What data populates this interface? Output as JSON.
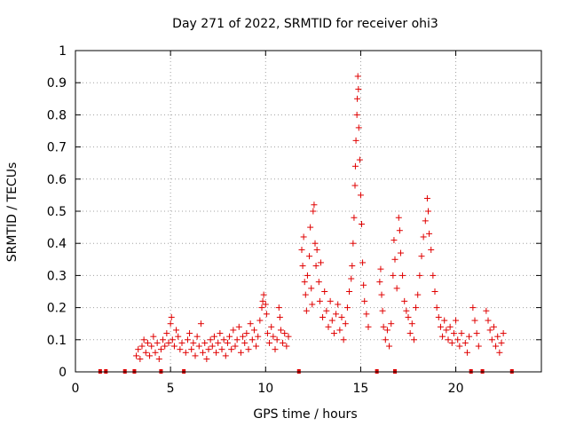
{
  "chart_data": {
    "type": "scatter",
    "title": "Day 271 of 2022, SRMTID for receiver ohi3",
    "xlabel": "GPS time / hours",
    "ylabel": "SRMTID / TECUs",
    "xlim": [
      0,
      24.5
    ],
    "ylim": [
      0,
      1
    ],
    "x_ticks": [
      "0",
      "5",
      "10",
      "15",
      "20"
    ],
    "y_ticks": [
      "0",
      "0.1",
      "0.2",
      "0.3",
      "0.4",
      "0.5",
      "0.6",
      "0.7",
      "0.8",
      "0.9",
      "1"
    ],
    "grid": true,
    "marker": "+",
    "color": "#e00000",
    "markers_at_zero_x": [
      1.3,
      1.6,
      2.6,
      3.1,
      4.5,
      5.7,
      11.75,
      15.85,
      16.8,
      20.8,
      21.4,
      22.95
    ],
    "series": [
      {
        "name": "ohi3",
        "points": [
          [
            3.2,
            0.05
          ],
          [
            3.3,
            0.07
          ],
          [
            3.4,
            0.04
          ],
          [
            3.5,
            0.08
          ],
          [
            3.6,
            0.1
          ],
          [
            3.7,
            0.06
          ],
          [
            3.8,
            0.09
          ],
          [
            3.9,
            0.05
          ],
          [
            4.0,
            0.08
          ],
          [
            4.1,
            0.11
          ],
          [
            4.2,
            0.06
          ],
          [
            4.3,
            0.09
          ],
          [
            4.4,
            0.04
          ],
          [
            4.5,
            0.07
          ],
          [
            4.6,
            0.1
          ],
          [
            4.7,
            0.08
          ],
          [
            4.8,
            0.12
          ],
          [
            4.9,
            0.09
          ],
          [
            5.0,
            0.15
          ],
          [
            5.05,
            0.17
          ],
          [
            5.1,
            0.1
          ],
          [
            5.2,
            0.08
          ],
          [
            5.3,
            0.13
          ],
          [
            5.4,
            0.11
          ],
          [
            5.5,
            0.07
          ],
          [
            5.6,
            0.09
          ],
          [
            5.8,
            0.06
          ],
          [
            5.9,
            0.1
          ],
          [
            6.0,
            0.12
          ],
          [
            6.1,
            0.07
          ],
          [
            6.2,
            0.09
          ],
          [
            6.3,
            0.05
          ],
          [
            6.4,
            0.11
          ],
          [
            6.5,
            0.08
          ],
          [
            6.6,
            0.15
          ],
          [
            6.7,
            0.06
          ],
          [
            6.8,
            0.09
          ],
          [
            6.9,
            0.04
          ],
          [
            7.0,
            0.07
          ],
          [
            7.1,
            0.1
          ],
          [
            7.2,
            0.08
          ],
          [
            7.3,
            0.11
          ],
          [
            7.4,
            0.06
          ],
          [
            7.5,
            0.09
          ],
          [
            7.6,
            0.12
          ],
          [
            7.7,
            0.07
          ],
          [
            7.8,
            0.1
          ],
          [
            7.9,
            0.05
          ],
          [
            8.0,
            0.09
          ],
          [
            8.1,
            0.11
          ],
          [
            8.2,
            0.07
          ],
          [
            8.3,
            0.13
          ],
          [
            8.4,
            0.08
          ],
          [
            8.5,
            0.1
          ],
          [
            8.6,
            0.14
          ],
          [
            8.7,
            0.06
          ],
          [
            8.8,
            0.11
          ],
          [
            8.9,
            0.09
          ],
          [
            9.0,
            0.12
          ],
          [
            9.1,
            0.07
          ],
          [
            9.2,
            0.15
          ],
          [
            9.3,
            0.1
          ],
          [
            9.4,
            0.13
          ],
          [
            9.5,
            0.08
          ],
          [
            9.6,
            0.11
          ],
          [
            9.7,
            0.16
          ],
          [
            9.8,
            0.2
          ],
          [
            9.85,
            0.22
          ],
          [
            9.9,
            0.24
          ],
          [
            10.0,
            0.21
          ],
          [
            10.05,
            0.18
          ],
          [
            10.1,
            0.12
          ],
          [
            10.2,
            0.09
          ],
          [
            10.3,
            0.14
          ],
          [
            10.4,
            0.11
          ],
          [
            10.5,
            0.07
          ],
          [
            10.6,
            0.1
          ],
          [
            10.7,
            0.2
          ],
          [
            10.75,
            0.17
          ],
          [
            10.8,
            0.13
          ],
          [
            10.9,
            0.09
          ],
          [
            11.0,
            0.12
          ],
          [
            11.1,
            0.08
          ],
          [
            11.2,
            0.11
          ],
          [
            11.9,
            0.38
          ],
          [
            11.95,
            0.33
          ],
          [
            12.0,
            0.42
          ],
          [
            12.05,
            0.28
          ],
          [
            12.1,
            0.24
          ],
          [
            12.15,
            0.19
          ],
          [
            12.2,
            0.3
          ],
          [
            12.3,
            0.36
          ],
          [
            12.35,
            0.45
          ],
          [
            12.4,
            0.26
          ],
          [
            12.45,
            0.21
          ],
          [
            12.5,
            0.5
          ],
          [
            12.55,
            0.52
          ],
          [
            12.6,
            0.4
          ],
          [
            12.65,
            0.33
          ],
          [
            12.7,
            0.38
          ],
          [
            12.8,
            0.28
          ],
          [
            12.85,
            0.22
          ],
          [
            12.9,
            0.34
          ],
          [
            13.0,
            0.17
          ],
          [
            13.1,
            0.25
          ],
          [
            13.2,
            0.19
          ],
          [
            13.3,
            0.14
          ],
          [
            13.4,
            0.22
          ],
          [
            13.5,
            0.16
          ],
          [
            13.6,
            0.12
          ],
          [
            13.7,
            0.18
          ],
          [
            13.8,
            0.21
          ],
          [
            13.9,
            0.13
          ],
          [
            14.0,
            0.17
          ],
          [
            14.1,
            0.1
          ],
          [
            14.2,
            0.15
          ],
          [
            14.3,
            0.2
          ],
          [
            14.4,
            0.25
          ],
          [
            14.5,
            0.29
          ],
          [
            14.55,
            0.33
          ],
          [
            14.6,
            0.4
          ],
          [
            14.65,
            0.48
          ],
          [
            14.7,
            0.58
          ],
          [
            14.72,
            0.64
          ],
          [
            14.75,
            0.72
          ],
          [
            14.8,
            0.8
          ],
          [
            14.82,
            0.85
          ],
          [
            14.85,
            0.92
          ],
          [
            14.88,
            0.88
          ],
          [
            14.9,
            0.76
          ],
          [
            14.95,
            0.66
          ],
          [
            15.0,
            0.55
          ],
          [
            15.05,
            0.46
          ],
          [
            15.1,
            0.34
          ],
          [
            15.15,
            0.27
          ],
          [
            15.2,
            0.22
          ],
          [
            15.3,
            0.18
          ],
          [
            15.4,
            0.14
          ],
          [
            16.0,
            0.28
          ],
          [
            16.05,
            0.32
          ],
          [
            16.1,
            0.24
          ],
          [
            16.15,
            0.19
          ],
          [
            16.2,
            0.14
          ],
          [
            16.3,
            0.1
          ],
          [
            16.4,
            0.13
          ],
          [
            16.5,
            0.08
          ],
          [
            16.6,
            0.15
          ],
          [
            16.7,
            0.3
          ],
          [
            16.75,
            0.41
          ],
          [
            16.8,
            0.35
          ],
          [
            16.9,
            0.26
          ],
          [
            17.0,
            0.48
          ],
          [
            17.05,
            0.44
          ],
          [
            17.1,
            0.37
          ],
          [
            17.2,
            0.3
          ],
          [
            17.3,
            0.22
          ],
          [
            17.4,
            0.19
          ],
          [
            17.5,
            0.17
          ],
          [
            17.6,
            0.12
          ],
          [
            17.7,
            0.15
          ],
          [
            17.8,
            0.1
          ],
          [
            17.9,
            0.2
          ],
          [
            18.0,
            0.24
          ],
          [
            18.1,
            0.3
          ],
          [
            18.2,
            0.36
          ],
          [
            18.3,
            0.42
          ],
          [
            18.4,
            0.47
          ],
          [
            18.5,
            0.54
          ],
          [
            18.55,
            0.5
          ],
          [
            18.6,
            0.43
          ],
          [
            18.7,
            0.38
          ],
          [
            18.8,
            0.3
          ],
          [
            18.9,
            0.25
          ],
          [
            19.0,
            0.2
          ],
          [
            19.1,
            0.17
          ],
          [
            19.2,
            0.14
          ],
          [
            19.3,
            0.11
          ],
          [
            19.4,
            0.16
          ],
          [
            19.5,
            0.13
          ],
          [
            19.6,
            0.1
          ],
          [
            19.7,
            0.14
          ],
          [
            19.8,
            0.09
          ],
          [
            19.9,
            0.12
          ],
          [
            20.0,
            0.16
          ],
          [
            20.1,
            0.1
          ],
          [
            20.2,
            0.08
          ],
          [
            20.3,
            0.12
          ],
          [
            20.5,
            0.09
          ],
          [
            20.6,
            0.06
          ],
          [
            20.7,
            0.11
          ],
          [
            20.9,
            0.2
          ],
          [
            21.0,
            0.16
          ],
          [
            21.1,
            0.12
          ],
          [
            21.2,
            0.08
          ],
          [
            21.6,
            0.19
          ],
          [
            21.7,
            0.16
          ],
          [
            21.8,
            0.13
          ],
          [
            21.9,
            0.1
          ],
          [
            22.0,
            0.14
          ],
          [
            22.1,
            0.08
          ],
          [
            22.2,
            0.11
          ],
          [
            22.3,
            0.06
          ],
          [
            22.4,
            0.09
          ],
          [
            22.5,
            0.12
          ]
        ]
      }
    ]
  }
}
